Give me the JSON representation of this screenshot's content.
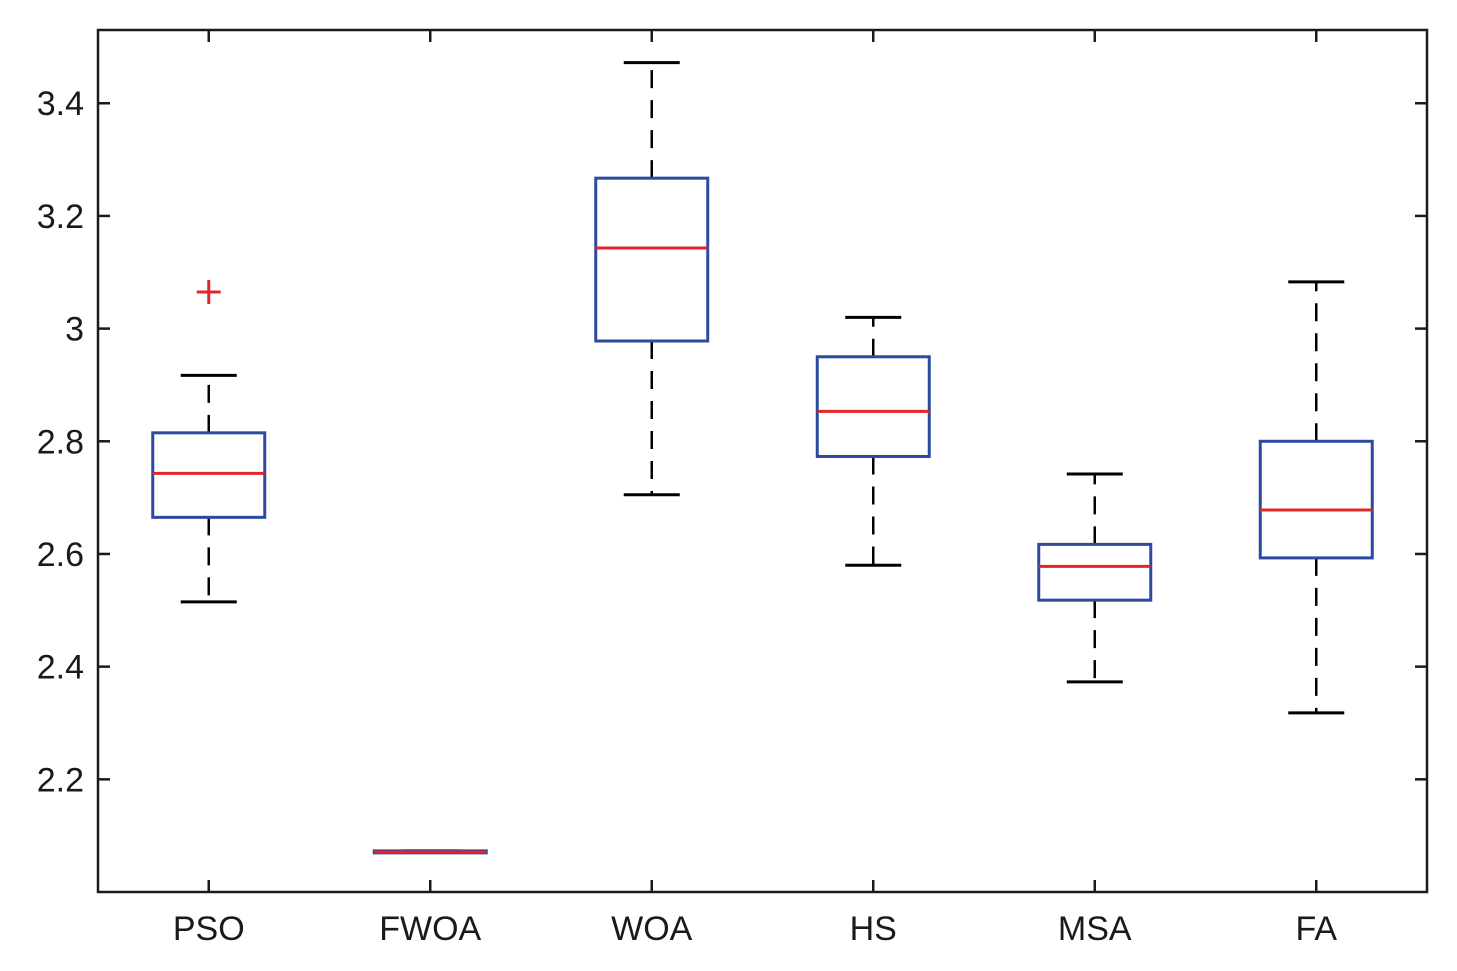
{
  "chart_data": {
    "type": "box",
    "title": "",
    "xlabel": "",
    "ylabel": "",
    "ylim": [
      2.0,
      3.53
    ],
    "yticks": [
      2.2,
      2.4,
      2.6,
      2.8,
      3.0,
      3.2,
      3.4
    ],
    "ytick_labels": [
      "2.2",
      "2.4",
      "2.6",
      "2.8",
      "3",
      "3.2",
      "3.4"
    ],
    "categories": [
      "PSO",
      "FWOA",
      "WOA",
      "HS",
      "MSA",
      "FA"
    ],
    "boxes": [
      {
        "name": "PSO",
        "whisker_low": 2.515,
        "q1": 2.665,
        "median": 2.743,
        "q3": 2.815,
        "whisker_high": 2.917,
        "outliers": [
          3.065
        ]
      },
      {
        "name": "FWOA",
        "whisker_low": 2.071,
        "q1": 2.071,
        "median": 2.071,
        "q3": 2.073,
        "whisker_high": 2.073,
        "outliers": []
      },
      {
        "name": "WOA",
        "whisker_low": 2.705,
        "q1": 2.978,
        "median": 3.143,
        "q3": 3.267,
        "whisker_high": 3.472,
        "outliers": []
      },
      {
        "name": "HS",
        "whisker_low": 2.58,
        "q1": 2.773,
        "median": 2.853,
        "q3": 2.95,
        "whisker_high": 3.02,
        "outliers": []
      },
      {
        "name": "MSA",
        "whisker_low": 2.373,
        "q1": 2.518,
        "median": 2.578,
        "q3": 2.617,
        "whisker_high": 2.742,
        "outliers": []
      },
      {
        "name": "FA",
        "whisker_low": 2.318,
        "q1": 2.593,
        "median": 2.678,
        "q3": 2.8,
        "whisker_high": 3.083,
        "outliers": []
      }
    ],
    "colors": {
      "box": "#2b4aa0",
      "median": "#e3242b",
      "whisker": "#000000",
      "outlier": "#e3242b"
    }
  }
}
